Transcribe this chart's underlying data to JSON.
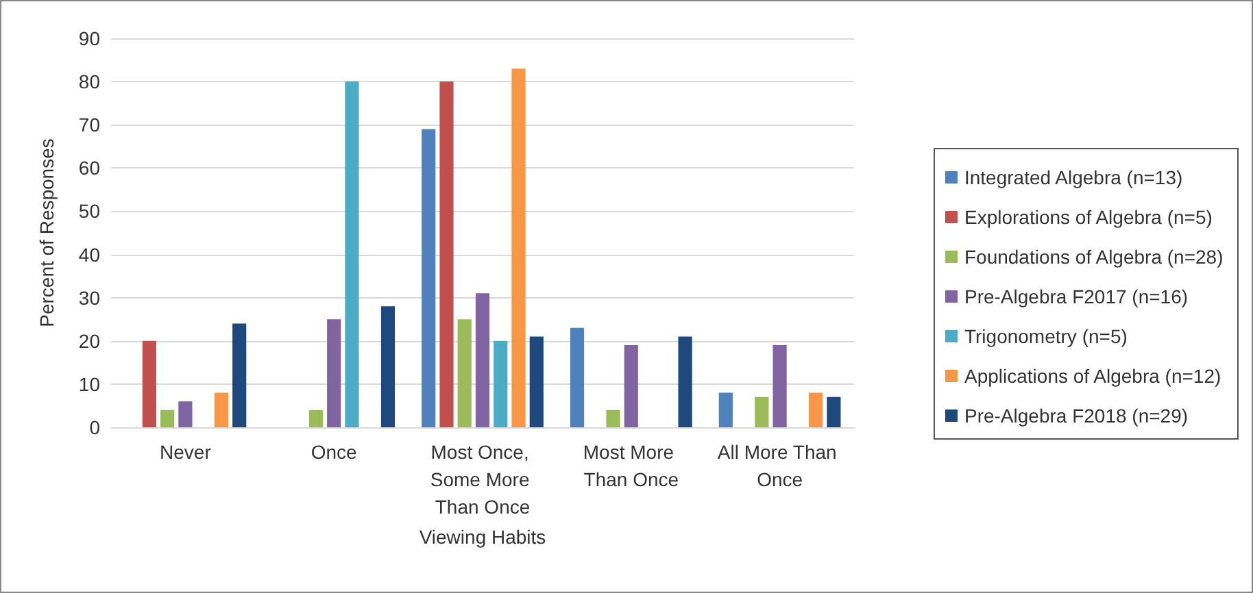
{
  "chart_data": {
    "type": "bar",
    "xlabel": "Viewing Habits",
    "ylabel": "Percent of Responses",
    "categories": [
      "Never",
      "Once",
      "Most Once, Some More Than Once",
      "Most More Than Once",
      "All More Than Once"
    ],
    "series": [
      {
        "name": "Integrated Algebra (n=13)",
        "color": "#4f81bd",
        "values": [
          0,
          0,
          69,
          23,
          8
        ]
      },
      {
        "name": "Explorations of Algebra (n=5)",
        "color": "#c0504d",
        "values": [
          20,
          0,
          80,
          0,
          0
        ]
      },
      {
        "name": "Foundations of Algebra (n=28)",
        "color": "#9bbb59",
        "values": [
          4,
          4,
          25,
          4,
          7
        ]
      },
      {
        "name": "Pre-Algebra F2017 (n=16)",
        "color": "#8064a2",
        "values": [
          6,
          25,
          31,
          19,
          19
        ]
      },
      {
        "name": "Trigonometry (n=5)",
        "color": "#4bacc6",
        "values": [
          0,
          80,
          20,
          0,
          0
        ]
      },
      {
        "name": "Applications of Algebra (n=12)",
        "color": "#f79646",
        "values": [
          8,
          0,
          83,
          0,
          8
        ]
      },
      {
        "name": "Pre-Algebra F2018 (n=29)",
        "color": "#1f497d",
        "values": [
          24,
          28,
          21,
          21,
          7
        ]
      }
    ],
    "ylim": [
      0,
      90
    ],
    "yticks": [
      0,
      10,
      20,
      30,
      40,
      50,
      60,
      70,
      80,
      90
    ],
    "grid": "y",
    "legend": "right"
  }
}
